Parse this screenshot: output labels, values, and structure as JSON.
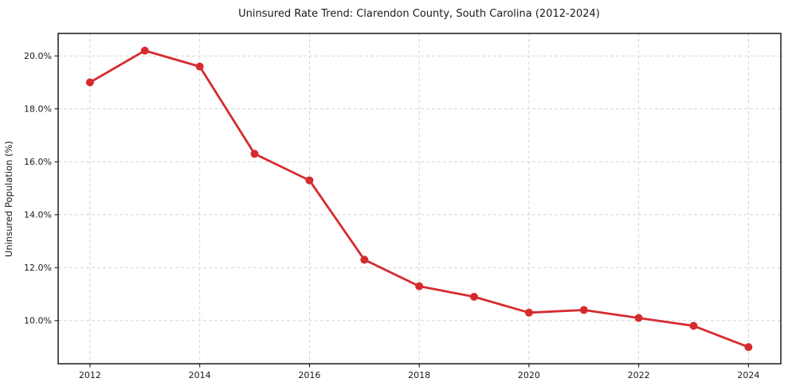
{
  "chart_data": {
    "type": "line",
    "title": "Uninsured Rate Trend: Clarendon County, South Carolina (2012-2024)",
    "xlabel": "",
    "ylabel": "Uninsured Population (%)",
    "series": [
      {
        "name": "Uninsured rate",
        "x": [
          2012,
          2013,
          2014,
          2015,
          2016,
          2017,
          2018,
          2019,
          2020,
          2021,
          2022,
          2023,
          2024
        ],
        "values": [
          19.0,
          20.2,
          19.6,
          16.3,
          15.3,
          12.3,
          11.3,
          10.9,
          10.3,
          10.4,
          10.1,
          9.8,
          9.0
        ]
      }
    ],
    "xticks": {
      "values": [
        2012,
        2014,
        2016,
        2018,
        2020,
        2022,
        2024
      ],
      "labels": [
        "2012",
        "2014",
        "2016",
        "2018",
        "2020",
        "2022",
        "2024"
      ]
    },
    "yticks": {
      "values": [
        10,
        12,
        14,
        16,
        18,
        20
      ],
      "labels": [
        "10.0%",
        "12.0%",
        "14.0%",
        "16.0%",
        "18.0%",
        "20.0%"
      ]
    },
    "xlim": [
      2011.42,
      2024.59
    ],
    "ylim": [
      8.37,
      20.85
    ],
    "grid": true,
    "grid_style": "dashed",
    "legend_position": "none",
    "line_color": "#d62b2e",
    "marker": "circle",
    "grid_color": "#d0d0d0",
    "spine_color": "#1a1a1a",
    "text_color": "#1a1a1a",
    "background": "#ffffff"
  }
}
